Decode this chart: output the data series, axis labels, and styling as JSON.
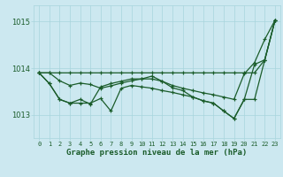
{
  "background_color": "#cce8f0",
  "grid_color": "#a8d4dc",
  "line_color": "#1a5c2a",
  "xlabel": "Graphe pression niveau de la mer (hPa)",
  "ylim": [
    1012.5,
    1015.35
  ],
  "yticks": [
    1013,
    1014,
    1015
  ],
  "x_ticks": [
    0,
    1,
    2,
    3,
    4,
    5,
    6,
    7,
    8,
    9,
    10,
    11,
    12,
    13,
    14,
    15,
    16,
    17,
    18,
    19,
    20,
    21,
    22,
    23
  ],
  "series": [
    [
      1013.9,
      1013.9,
      1013.73,
      1013.63,
      1013.68,
      1013.65,
      1013.57,
      1013.62,
      1013.68,
      1013.73,
      1013.77,
      1013.83,
      1013.72,
      1013.63,
      1013.57,
      1013.52,
      1013.47,
      1013.43,
      1013.38,
      1013.33,
      1013.88,
      1014.12,
      1014.62,
      1015.03
    ],
    [
      1013.9,
      1013.67,
      1013.33,
      1013.25,
      1013.33,
      1013.23,
      1013.6,
      1013.67,
      1013.72,
      1013.77,
      1013.77,
      1013.77,
      1013.72,
      1013.58,
      1013.52,
      1013.38,
      1013.3,
      1013.25,
      1013.08,
      1012.92,
      1013.33,
      1013.33,
      1014.18,
      1015.03
    ],
    [
      1013.9,
      1013.67,
      1013.33,
      1013.25,
      1013.25,
      1013.25,
      1013.35,
      1013.08,
      1013.57,
      1013.63,
      1013.6,
      1013.57,
      1013.52,
      1013.48,
      1013.43,
      1013.38,
      1013.3,
      1013.25,
      1013.08,
      1012.92,
      1013.33,
      1014.08,
      1014.18,
      1015.03
    ],
    [
      1013.9,
      1013.9,
      1013.9,
      1013.9,
      1013.9,
      1013.9,
      1013.9,
      1013.9,
      1013.9,
      1013.9,
      1013.9,
      1013.9,
      1013.9,
      1013.9,
      1013.9,
      1013.9,
      1013.9,
      1013.9,
      1013.9,
      1013.9,
      1013.9,
      1013.9,
      1014.18,
      1015.03
    ]
  ]
}
